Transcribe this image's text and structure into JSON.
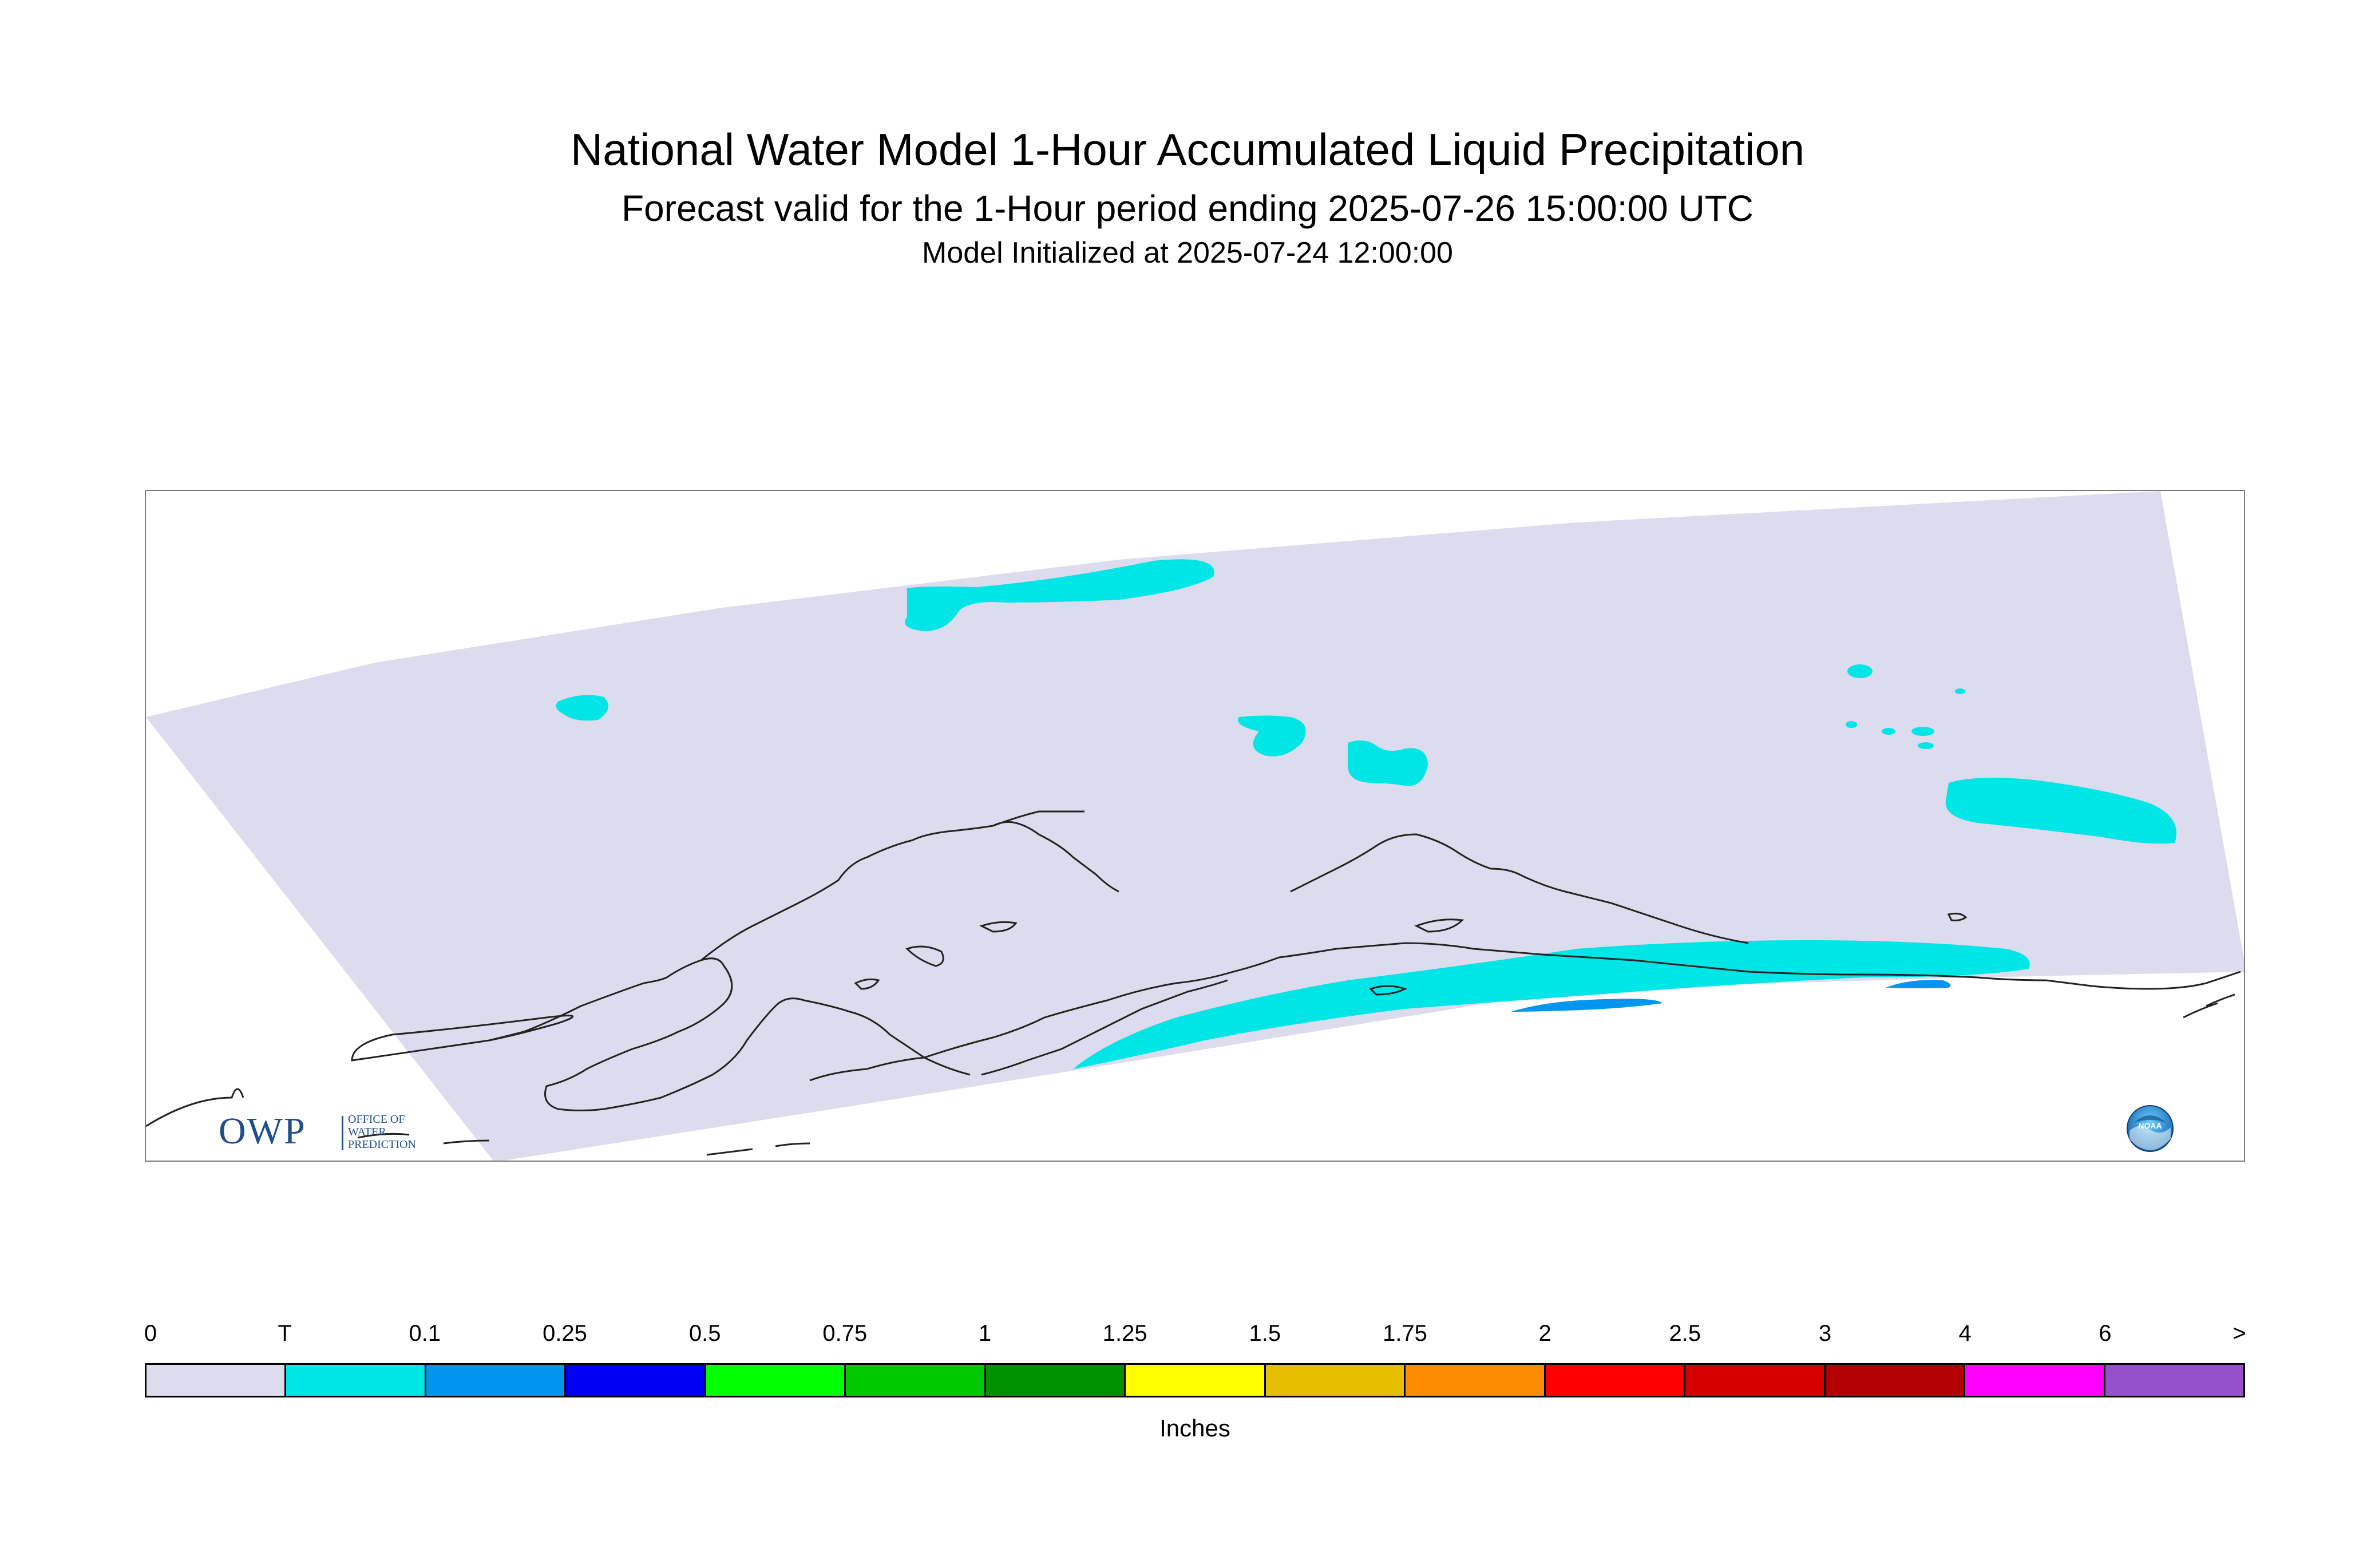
{
  "header": {
    "title": "National Water Model 1-Hour Accumulated Liquid Precipitation",
    "subtitle": "Forecast valid for the 1-Hour period ending 2025-07-26 15:00:00 UTC",
    "init_line": "Model Initialized at 2025-07-24 12:00:00"
  },
  "map": {
    "region": "Alaska",
    "domain_fill_color": "#dcdcee",
    "coastline_color": "#222222",
    "precip_colors": {
      "trace": "#00e5e5",
      "light": "#0096f0"
    }
  },
  "logos": {
    "owp": {
      "mark": "OWP",
      "line1": "OFFICE OF",
      "line2": "WATER",
      "line3": "PREDICTION",
      "color": "#1f4e8c"
    },
    "noaa": {
      "text": "NOAA",
      "color": "#0a5aa8"
    }
  },
  "legend": {
    "labels": [
      "0",
      "T",
      "0.1",
      "0.25",
      "0.5",
      "0.75",
      "1",
      "1.25",
      "1.5",
      "1.75",
      "2",
      "2.5",
      "3",
      "4",
      "6",
      ">"
    ],
    "colors": [
      "#dcdcee",
      "#00e5e5",
      "#0096f0",
      "#0000f5",
      "#00ff00",
      "#00c800",
      "#009100",
      "#ffff00",
      "#e6be00",
      "#ff8c00",
      "#ff0000",
      "#d20000",
      "#b40000",
      "#ff00ff",
      "#9650c8"
    ],
    "units": "Inches"
  }
}
